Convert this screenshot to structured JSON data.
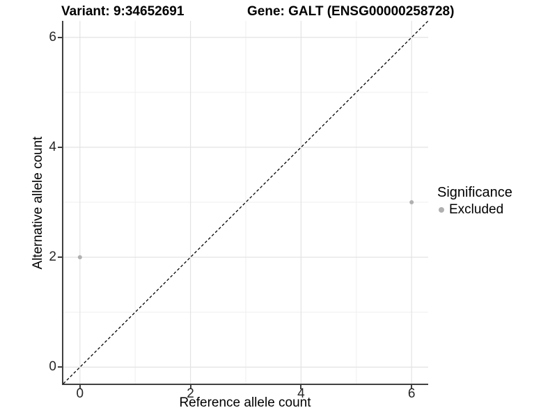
{
  "chart_data": {
    "type": "scatter",
    "title_left": "Variant: 9:34652691",
    "title_right": "Gene: GALT (ENSG00000258728)",
    "xlabel": "Reference allele count",
    "ylabel": "Alternative allele count",
    "xlim": [
      -0.3,
      6.3
    ],
    "ylim": [
      -0.3,
      6.3
    ],
    "xticks": [
      0,
      2,
      4,
      6
    ],
    "yticks": [
      0,
      2,
      4,
      6
    ],
    "x_minor_ticks": [
      1,
      3,
      5
    ],
    "y_minor_ticks": [
      1,
      3,
      5
    ],
    "grid": true,
    "background_color": "#ffffff",
    "axis_color": "#404040",
    "tick_label_color": "#262626",
    "major_grid_color": "#e3e3e3",
    "minor_grid_color": "#efefef",
    "identity_line": {
      "style": "dashed",
      "color": "#000000",
      "from": [
        -0.3,
        -0.3
      ],
      "to": [
        6.3,
        6.3
      ]
    },
    "series": [
      {
        "name": "Excluded",
        "color": "#b0b0b0",
        "point_radius": 3,
        "points": [
          {
            "x": 0,
            "y": 2
          },
          {
            "x": 6,
            "y": 3
          }
        ]
      }
    ],
    "legend": {
      "title": "Significance",
      "position": "right",
      "entries": [
        {
          "label": "Excluded",
          "color": "#b0b0b0"
        }
      ]
    }
  }
}
